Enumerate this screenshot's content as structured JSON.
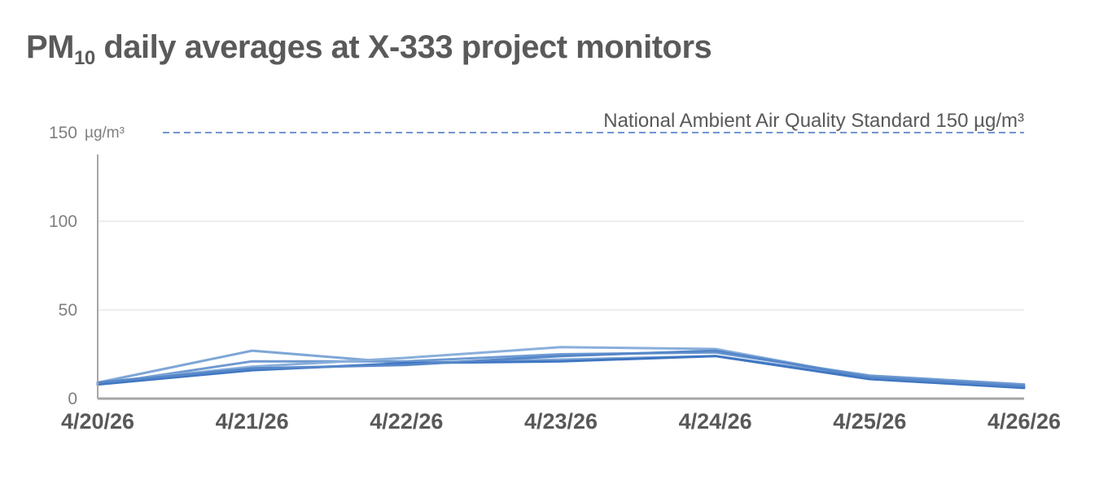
{
  "chart_data": {
    "type": "line",
    "title_prefix": "PM",
    "title_subscript": "10",
    "title_suffix": " daily averages at X-333 project monitors",
    "y_unit": "µg/m³",
    "categories": [
      "4/20/26",
      "4/21/26",
      "4/22/26",
      "4/23/26",
      "4/24/26",
      "4/25/26",
      "4/26/26"
    ],
    "y_ticks": [
      0,
      50,
      100,
      150
    ],
    "ylim": [
      0,
      150
    ],
    "grid": true,
    "series": [
      {
        "values": [
          9,
          27,
          20,
          22,
          24,
          12,
          7
        ],
        "color": "#7fa6d6"
      },
      {
        "values": [
          8,
          21,
          21,
          25,
          26,
          13,
          8
        ],
        "color": "#6f9ad2"
      },
      {
        "values": [
          9,
          18,
          23,
          29,
          28,
          12,
          7
        ],
        "color": "#89afdb"
      },
      {
        "values": [
          8,
          16,
          20,
          21,
          24,
          11,
          6
        ],
        "color": "#3f76c2"
      },
      {
        "values": [
          9,
          17,
          19,
          24,
          27,
          12,
          7
        ],
        "color": "#5687c9"
      }
    ],
    "reference_line": {
      "value": 150,
      "label": "National Ambient Air Quality Standard 150 µg/m³",
      "color": "#4472c4"
    },
    "colors": {
      "title": "#5a5a5a",
      "axis": "#a6a6a6",
      "gridline": "#eeeeee"
    }
  }
}
